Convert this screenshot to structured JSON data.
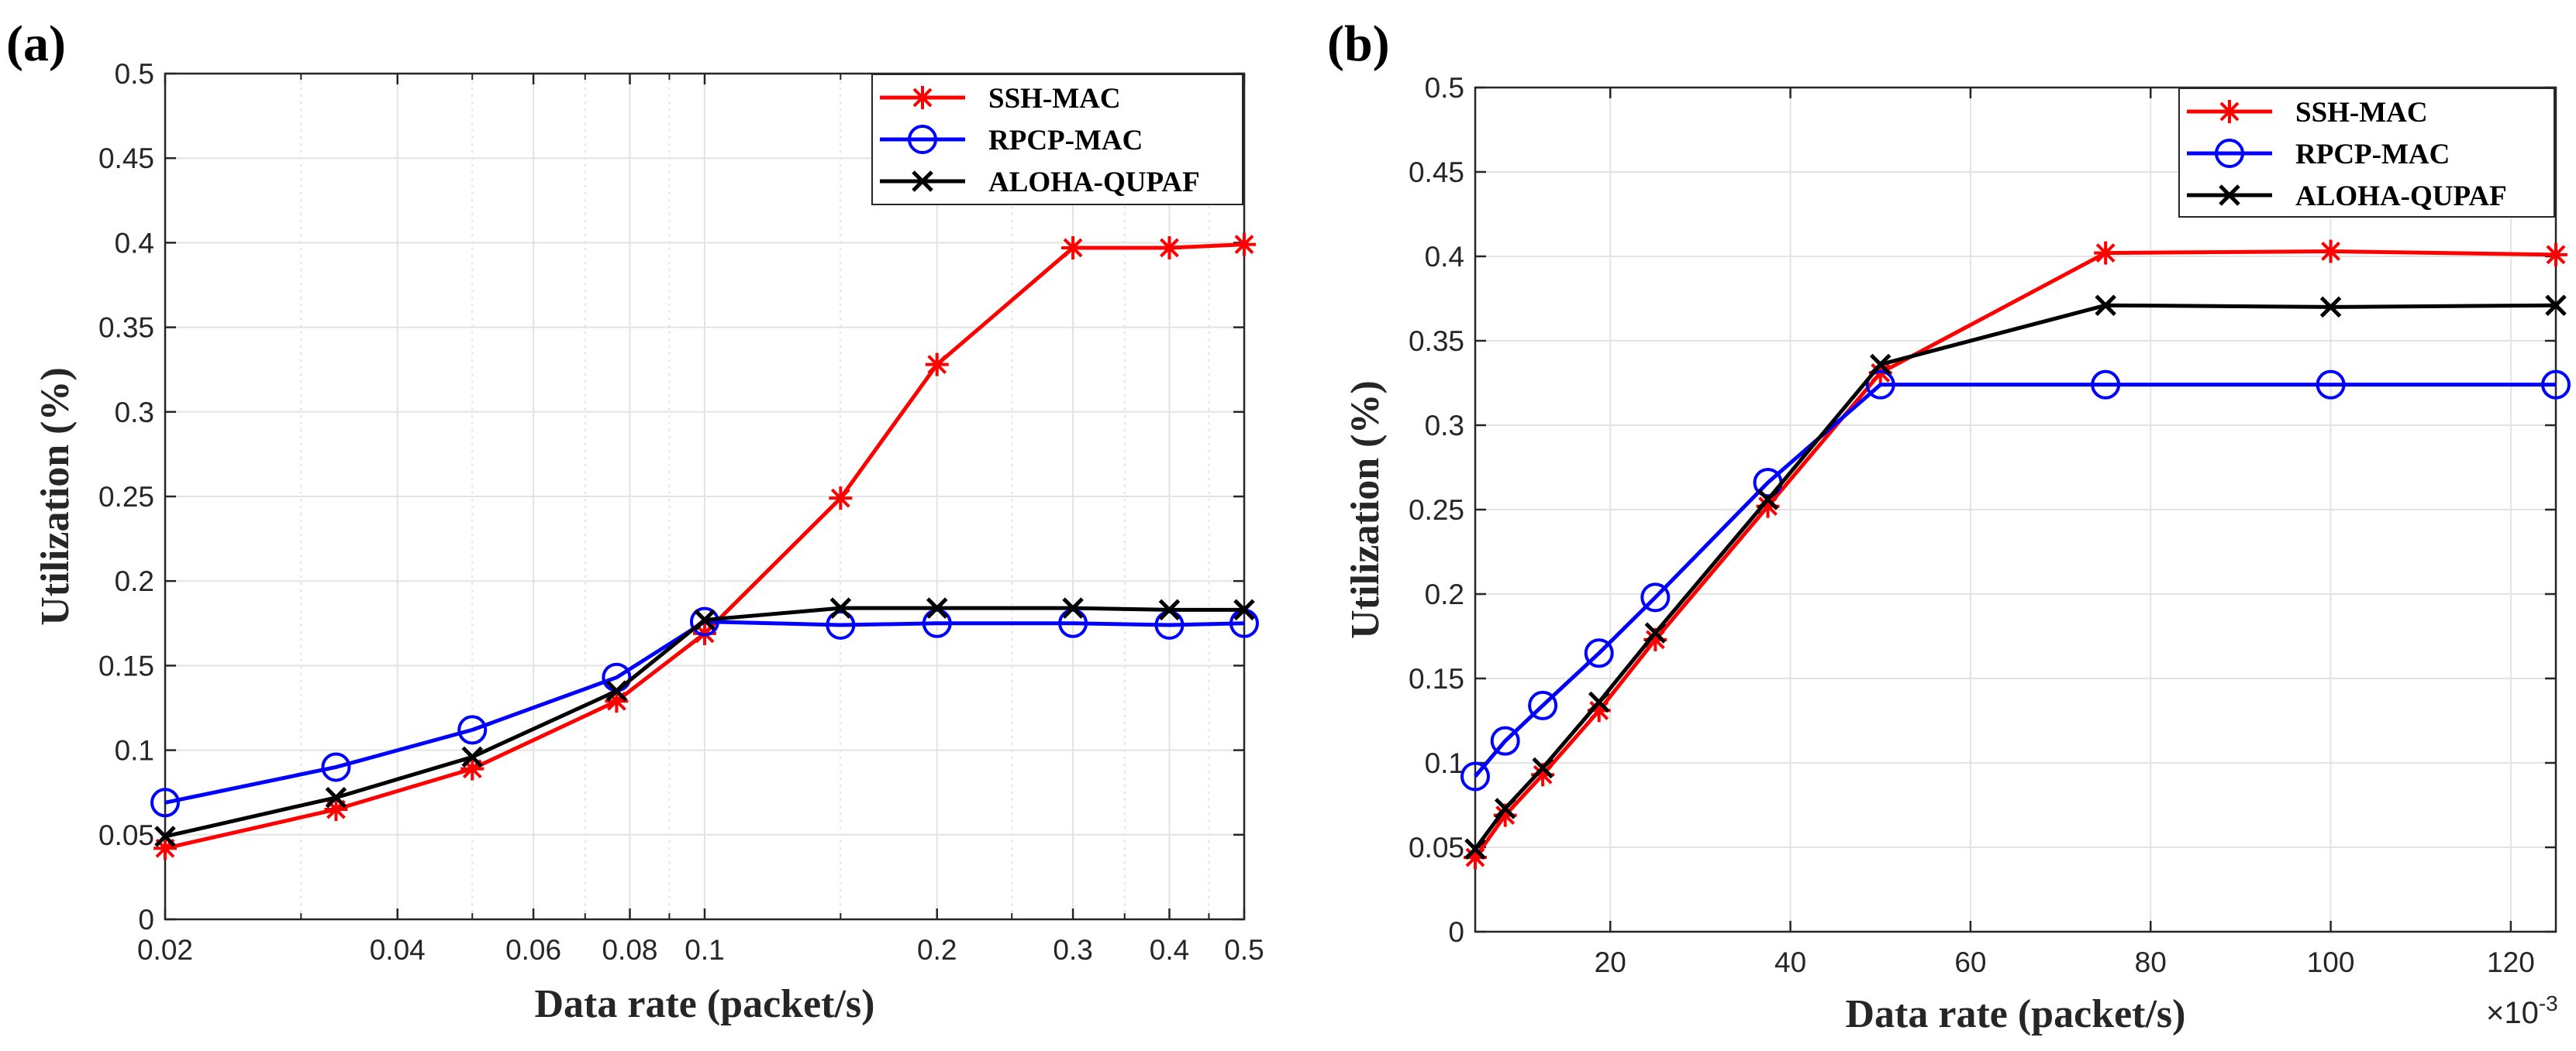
{
  "chart_data": [
    {
      "type": "line",
      "panel_label": "(a)",
      "xscale": "log",
      "xlim": [
        0.02,
        0.5
      ],
      "ylim": [
        0,
        0.5
      ],
      "xlabel": "Data rate (packet/s)",
      "ylabel": "Utilization (%)",
      "grid": true,
      "legend_position": "top-right",
      "x_ticks": [
        0.02,
        0.04,
        0.06,
        0.08,
        0.1,
        0.2,
        0.3,
        0.4,
        0.5
      ],
      "x_tick_labels": [
        "0.02",
        "0.04",
        "0.06",
        "0.08",
        "0.1",
        "0.2",
        "0.3",
        "0.4",
        "0.5"
      ],
      "y_ticks": [
        0,
        0.05,
        0.1,
        0.15,
        0.2,
        0.25,
        0.3,
        0.35,
        0.4,
        0.45,
        0.5
      ],
      "y_tick_labels": [
        "0",
        "0.05",
        "0.1",
        "0.15",
        "0.2",
        "0.25",
        "0.3",
        "0.35",
        "0.4",
        "0.45",
        "0.5"
      ],
      "x": [
        0.02,
        0.0333,
        0.05,
        0.0769,
        0.1,
        0.15,
        0.2,
        0.3,
        0.4,
        0.5
      ],
      "series": [
        {
          "name": "SSH-MAC",
          "color": "#ff0000",
          "marker": "star",
          "values": [
            0.042,
            0.065,
            0.089,
            0.129,
            0.169,
            0.249,
            0.328,
            0.397,
            0.397,
            0.399
          ]
        },
        {
          "name": "RPCP-MAC",
          "color": "#0000ff",
          "marker": "circle",
          "values": [
            0.069,
            0.09,
            0.112,
            0.143,
            0.176,
            0.174,
            0.175,
            0.175,
            0.174,
            0.175
          ]
        },
        {
          "name": "ALOHA-QUPAF",
          "color": "#000000",
          "marker": "x",
          "values": [
            0.049,
            0.072,
            0.096,
            0.135,
            0.177,
            0.184,
            0.184,
            0.184,
            0.183,
            0.183
          ]
        }
      ]
    },
    {
      "type": "line",
      "panel_label": "(b)",
      "xscale": "linear",
      "xlim": [
        5,
        125
      ],
      "ylim": [
        0,
        0.5
      ],
      "xlabel": "Data rate (packet/s)",
      "ylabel": "Utilization (%)",
      "x_multiplier_label": "×10",
      "x_multiplier_exponent": "-3",
      "grid": true,
      "legend_position": "top-right",
      "x_ticks": [
        20,
        40,
        60,
        80,
        100,
        120
      ],
      "x_tick_labels": [
        "20",
        "40",
        "60",
        "80",
        "100",
        "120"
      ],
      "y_ticks": [
        0,
        0.05,
        0.1,
        0.15,
        0.2,
        0.25,
        0.3,
        0.35,
        0.4,
        0.45,
        0.5
      ],
      "y_tick_labels": [
        "0",
        "0.05",
        "0.1",
        "0.15",
        "0.2",
        "0.25",
        "0.3",
        "0.35",
        "0.4",
        "0.45",
        "0.5"
      ],
      "x": [
        5,
        8.33,
        12.5,
        18.75,
        25,
        37.5,
        50,
        75,
        100,
        125
      ],
      "series": [
        {
          "name": "SSH-MAC",
          "color": "#ff0000",
          "marker": "star",
          "values": [
            0.044,
            0.069,
            0.093,
            0.131,
            0.173,
            0.252,
            0.331,
            0.402,
            0.403,
            0.401
          ]
        },
        {
          "name": "RPCP-MAC",
          "color": "#0000ff",
          "marker": "circle",
          "values": [
            0.092,
            0.113,
            0.134,
            0.165,
            0.198,
            0.266,
            0.324,
            0.324,
            0.324,
            0.324
          ]
        },
        {
          "name": "ALOHA-QUPAF",
          "color": "#000000",
          "marker": "x",
          "values": [
            0.049,
            0.073,
            0.097,
            0.136,
            0.177,
            0.256,
            0.336,
            0.371,
            0.37,
            0.371
          ]
        }
      ]
    }
  ]
}
